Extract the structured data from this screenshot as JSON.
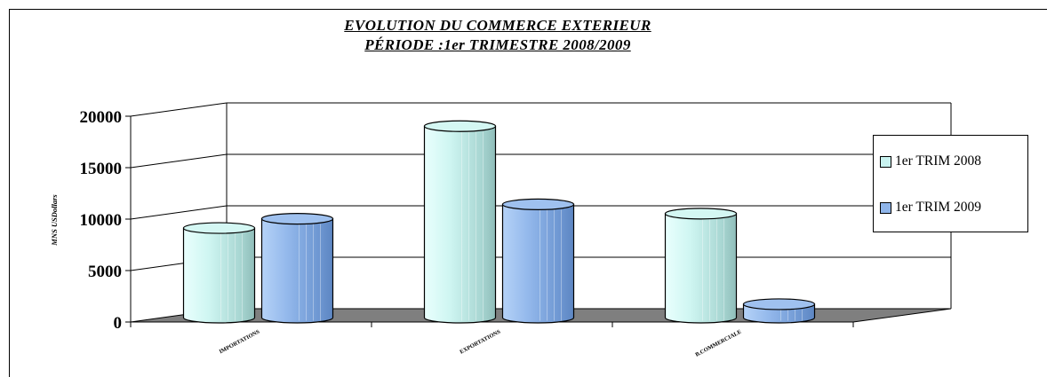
{
  "chart_data": {
    "type": "bar",
    "title": [
      "EVOLUTION DU COMMERCE EXTERIEUR",
      "PÉRIODE :1er TRIMESTRE  2008/2009"
    ],
    "ylabel": "MNS USDollars",
    "xlabel": "",
    "ylim": [
      0,
      20000
    ],
    "yticks": [
      0,
      5000,
      10000,
      15000,
      20000
    ],
    "categories": [
      "IMPORTATIONS",
      "EXPORTATIONS",
      "B.COMMERCIALE"
    ],
    "series": [
      {
        "name": "1er TRIM  2008",
        "values": [
          8700,
          18600,
          10100
        ],
        "color": "#c9f3f0"
      },
      {
        "name": "1er TRIM  2009",
        "values": [
          9600,
          11000,
          1300
        ],
        "color": "#8fb5ea"
      }
    ],
    "grid": true,
    "legend_position": "right",
    "style": "3d-cylinder",
    "floor_color": "#7f7f7f"
  }
}
